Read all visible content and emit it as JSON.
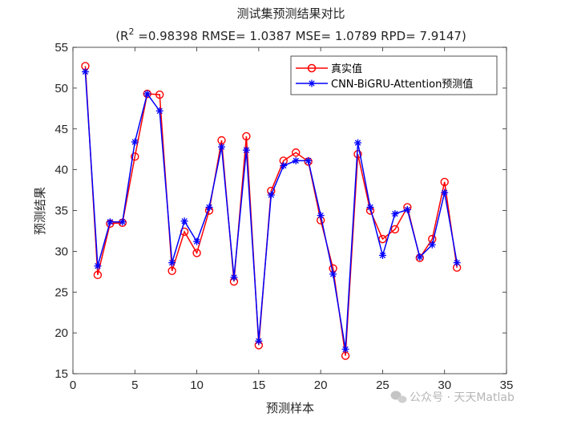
{
  "chart_data": {
    "type": "line",
    "title": "测试集预测结果对比",
    "subtitle_prefix": "(R",
    "subtitle_sup": "2",
    "subtitle_rest": " =0.98398 RMSE= 1.0387 MSE= 1.0789 RPD= 7.9147)",
    "xlabel": "预测样本",
    "ylabel": "预测结果",
    "xlim": [
      0,
      35
    ],
    "ylim": [
      15,
      55
    ],
    "xticks": [
      0,
      5,
      10,
      15,
      20,
      25,
      30,
      35
    ],
    "yticks": [
      15,
      20,
      25,
      30,
      35,
      40,
      45,
      50,
      55
    ],
    "grid": false,
    "legend_position": "top-right",
    "x": [
      1,
      2,
      3,
      4,
      5,
      6,
      7,
      8,
      9,
      10,
      11,
      12,
      13,
      14,
      15,
      16,
      17,
      18,
      19,
      20,
      21,
      22,
      23,
      24,
      25,
      26,
      27,
      28,
      29,
      30,
      31
    ],
    "series": [
      {
        "name": "真实值",
        "color": "#ff0000",
        "marker": "circle",
        "values": [
          52.7,
          27.1,
          33.4,
          33.5,
          41.6,
          49.3,
          49.2,
          27.6,
          32.4,
          29.8,
          35.0,
          43.6,
          26.3,
          44.1,
          18.5,
          37.4,
          41.1,
          42.1,
          41.0,
          33.8,
          27.9,
          17.2,
          41.9,
          35.0,
          31.5,
          32.7,
          35.4,
          29.2,
          31.5,
          38.5,
          28.0
        ]
      },
      {
        "name": "CNN-BiGRU-Attention预测值",
        "color": "#0000ff",
        "marker": "star",
        "values": [
          52.0,
          28.2,
          33.6,
          33.6,
          43.4,
          49.3,
          47.2,
          28.6,
          33.7,
          31.2,
          35.4,
          42.8,
          26.8,
          42.4,
          19.0,
          36.9,
          40.5,
          41.1,
          41.1,
          34.4,
          27.2,
          18.0,
          43.3,
          35.4,
          29.5,
          34.6,
          35.1,
          29.3,
          30.8,
          37.2,
          28.6
        ]
      }
    ]
  },
  "watermark": {
    "icon": "wechat-icon",
    "text": "公众号 · 天天Matlab"
  }
}
